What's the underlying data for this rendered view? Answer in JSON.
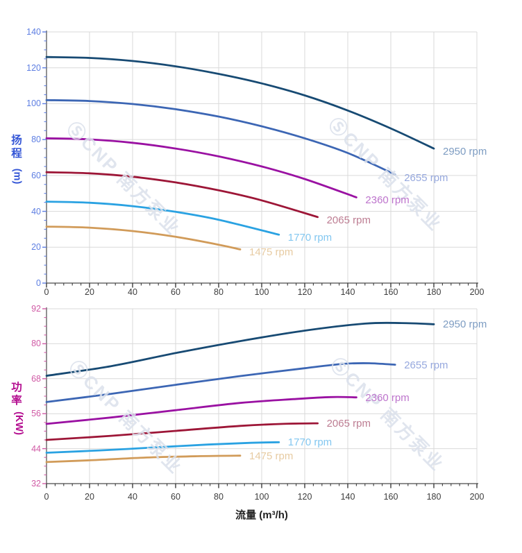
{
  "watermark": {
    "text": "ⓈCNP 南方泵业"
  },
  "chart_data": [
    {
      "type": "line",
      "name": "head-curves",
      "ylabel": "扬程 (m)",
      "ylabel_cn": "扬程",
      "ylabel_unit": "(m)",
      "xlim": [
        0,
        200
      ],
      "ylim": [
        0,
        140
      ],
      "x_ticks": [
        0,
        20,
        40,
        60,
        80,
        100,
        120,
        140,
        160,
        180,
        200
      ],
      "y_ticks": [
        0,
        20,
        40,
        60,
        80,
        100,
        120,
        140
      ],
      "x_minor_step": 4,
      "y_minor_step": 5,
      "grid": true,
      "axis_title_color": "#3355d6",
      "axis_tick_color": "#5d7ee2",
      "series": [
        {
          "name": "2950 rpm",
          "color": "#174a73",
          "label_color": "#7d9cc2",
          "points": [
            [
              0,
              126
            ],
            [
              20,
              125.5
            ],
            [
              40,
              123.8
            ],
            [
              60,
              120.8
            ],
            [
              80,
              116.6
            ],
            [
              100,
              111.3
            ],
            [
              120,
              104.6
            ],
            [
              140,
              96.2
            ],
            [
              160,
              86.2
            ],
            [
              180,
              75
            ]
          ]
        },
        {
          "name": "2655 rpm",
          "color": "#3c66b4",
          "label_color": "#96a8de",
          "points": [
            [
              0,
              102
            ],
            [
              20,
              101.5
            ],
            [
              40,
              99.8
            ],
            [
              60,
              96.9
            ],
            [
              80,
              92.8
            ],
            [
              100,
              87.4
            ],
            [
              120,
              80.7
            ],
            [
              140,
              72.5
            ],
            [
              162,
              60.5
            ]
          ]
        },
        {
          "name": "2360 rpm",
          "color": "#9a11a2",
          "label_color": "#bd74cc",
          "points": [
            [
              0,
              80.7
            ],
            [
              20,
              80.1
            ],
            [
              40,
              78.2
            ],
            [
              60,
              75
            ],
            [
              80,
              70.6
            ],
            [
              100,
              65
            ],
            [
              120,
              58
            ],
            [
              144,
              47.8
            ]
          ]
        },
        {
          "name": "2065 rpm",
          "color": "#9d1637",
          "label_color": "#bd7d92",
          "points": [
            [
              0,
              61.8
            ],
            [
              20,
              61.2
            ],
            [
              40,
              59.3
            ],
            [
              60,
              56.1
            ],
            [
              80,
              51.7
            ],
            [
              100,
              46.1
            ],
            [
              126,
              36.8
            ]
          ]
        },
        {
          "name": "1770 rpm",
          "color": "#2aa2e2",
          "label_color": "#83c7f0",
          "points": [
            [
              0,
              45.4
            ],
            [
              20,
              44.8
            ],
            [
              40,
              42.9
            ],
            [
              60,
              39.7
            ],
            [
              80,
              35.3
            ],
            [
              108,
              27
            ]
          ]
        },
        {
          "name": "1475 rpm",
          "color": "#d19b59",
          "label_color": "#e7cba2",
          "points": [
            [
              0,
              31.5
            ],
            [
              20,
              30.9
            ],
            [
              40,
              29
            ],
            [
              60,
              25.8
            ],
            [
              80,
              21.4
            ],
            [
              90,
              18.8
            ]
          ]
        }
      ]
    },
    {
      "type": "line",
      "name": "power-curves",
      "xlabel": "流量 (m³/h)",
      "ylabel": "功率 (KW)",
      "ylabel_cn": "功率",
      "ylabel_unit": "(KW)",
      "xlim": [
        0,
        200
      ],
      "ylim": [
        32,
        92
      ],
      "x_ticks": [
        0,
        20,
        40,
        60,
        80,
        100,
        120,
        140,
        160,
        180,
        200
      ],
      "y_ticks": [
        32,
        44,
        56,
        68,
        80,
        92
      ],
      "x_minor_step": 4,
      "y_minor_step": 3,
      "grid": true,
      "axis_title_color": "#b40e90",
      "axis_tick_color": "#d05aa5",
      "xlabel_color": "#222222",
      "x_tick_color": "#3b3b3b",
      "series": [
        {
          "name": "2950 rpm",
          "color": "#174a73",
          "label_color": "#7d9cc2",
          "points": [
            [
              0,
              69
            ],
            [
              30,
              72.3
            ],
            [
              60,
              76.8
            ],
            [
              90,
              80.9
            ],
            [
              120,
              84.5
            ],
            [
              148,
              86.9
            ],
            [
              165,
              87.1
            ],
            [
              180,
              86.7
            ]
          ]
        },
        {
          "name": "2655 rpm",
          "color": "#3c66b4",
          "label_color": "#96a8de",
          "points": [
            [
              0,
              60
            ],
            [
              30,
              62.8
            ],
            [
              60,
              65.9
            ],
            [
              90,
              68.9
            ],
            [
              120,
              71.6
            ],
            [
              138,
              73.1
            ],
            [
              150,
              73.3
            ],
            [
              162,
              72.8
            ]
          ]
        },
        {
          "name": "2360 rpm",
          "color": "#9a11a2",
          "label_color": "#bd74cc",
          "points": [
            [
              0,
              52.5
            ],
            [
              30,
              54.7
            ],
            [
              60,
              57.2
            ],
            [
              90,
              59.7
            ],
            [
              115,
              61
            ],
            [
              132,
              61.7
            ],
            [
              144,
              61.6
            ]
          ]
        },
        {
          "name": "2065 rpm",
          "color": "#9d1637",
          "label_color": "#bd7d92",
          "points": [
            [
              0,
              47
            ],
            [
              30,
              48.4
            ],
            [
              60,
              50.1
            ],
            [
              90,
              51.8
            ],
            [
              110,
              52.5
            ],
            [
              126,
              52.7
            ]
          ]
        },
        {
          "name": "1770 rpm",
          "color": "#2aa2e2",
          "label_color": "#83c7f0",
          "points": [
            [
              0,
              42.6
            ],
            [
              25,
              43.4
            ],
            [
              50,
              44.4
            ],
            [
              75,
              45.4
            ],
            [
              95,
              46
            ],
            [
              108,
              46.2
            ]
          ]
        },
        {
          "name": "1475 rpm",
          "color": "#d19b59",
          "label_color": "#e7cba2",
          "points": [
            [
              0,
              39.4
            ],
            [
              20,
              40
            ],
            [
              45,
              40.9
            ],
            [
              70,
              41.4
            ],
            [
              90,
              41.6
            ]
          ]
        }
      ]
    }
  ]
}
